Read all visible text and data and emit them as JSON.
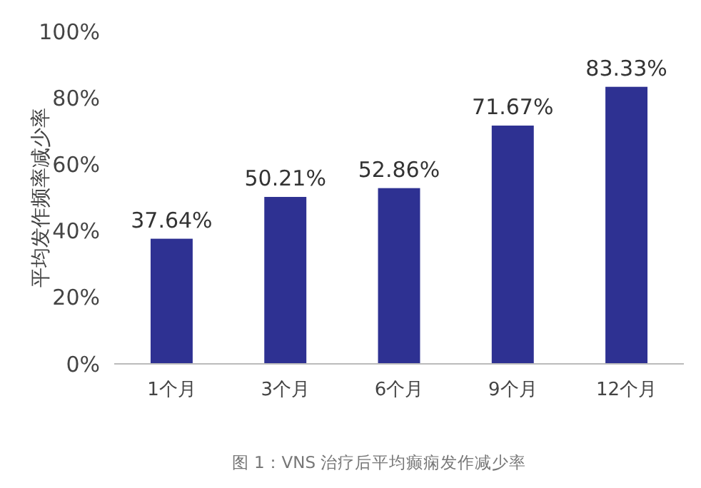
{
  "chart_data": {
    "type": "bar",
    "ylabel": "平均发作频率减少率",
    "categories": [
      "1个月",
      "3个月",
      "6个月",
      "9个月",
      "12个月"
    ],
    "values": [
      37.64,
      50.21,
      52.86,
      71.67,
      83.33
    ],
    "value_labels": [
      "37.64%",
      "50.21%",
      "52.86%",
      "71.67%",
      "83.33%"
    ],
    "color": "#2e3192",
    "ylim": [
      0,
      100
    ],
    "yticks": [
      {
        "value": 0,
        "label": "0%"
      },
      {
        "value": 20,
        "label": "20%"
      },
      {
        "value": 40,
        "label": "40%"
      },
      {
        "value": 60,
        "label": "60%"
      },
      {
        "value": 80,
        "label": "80%"
      },
      {
        "value": 100,
        "label": "100%"
      }
    ],
    "grid": false,
    "annotations": [
      "图 1：VNS 治疗后平均癫痫发作减少率"
    ]
  }
}
